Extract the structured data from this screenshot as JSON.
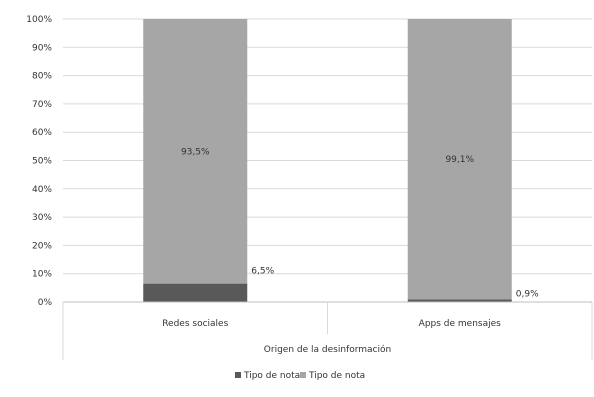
{
  "chart_data": {
    "type": "bar",
    "stacked": true,
    "title": "",
    "xlabel": "Origen de la desinformación",
    "ylabel": "",
    "ylim": [
      0,
      100
    ],
    "y_tick_labels": [
      "0%",
      "10%",
      "20%",
      "30%",
      "40%",
      "50%",
      "60%",
      "70%",
      "80%",
      "90%",
      "100%"
    ],
    "categories": [
      "Redes sociales",
      "Apps de mensajes"
    ],
    "series": [
      {
        "name": "Tipo de nota",
        "values": [
          6.5,
          0.9
        ],
        "labels": [
          "6,5%",
          "0,9%"
        ],
        "color": "#595959"
      },
      {
        "name": "Tipo de nota",
        "values": [
          93.5,
          99.1
        ],
        "labels": [
          "93,5%",
          "99,1%"
        ],
        "color": "#a6a6a6"
      }
    ],
    "grid": true,
    "legend_position": "bottom"
  }
}
